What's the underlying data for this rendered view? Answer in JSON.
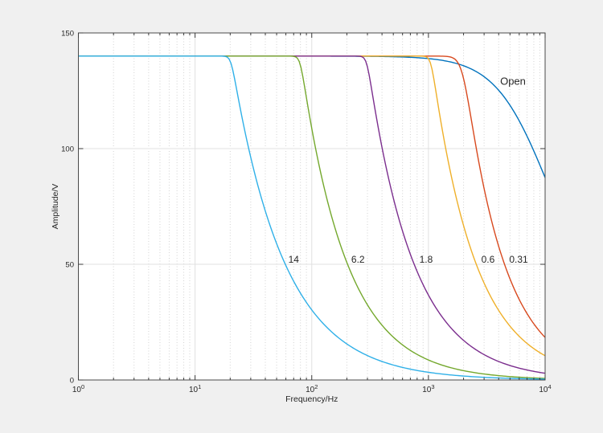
{
  "figure": {
    "background_color": "#f0f0f0",
    "plot_background_color": "#ffffff",
    "frame_color": "#4a4a4a",
    "tick_color": "#3a3a3a",
    "text_color": "#262626",
    "grid_major_color": "#e0e0e0",
    "grid_minor_color": "#d2d2d2",
    "annotation_color": "#000000"
  },
  "chart_data": {
    "type": "line",
    "title": "",
    "xlabel": "Frequency/Hz",
    "ylabel": "Amplitude/V",
    "x_scale": "log",
    "xlim": [
      1,
      10000
    ],
    "ylim": [
      0,
      150
    ],
    "x_tick_decades": [
      0,
      1,
      2,
      3,
      4
    ],
    "x_tick_base": "10",
    "y_ticks": [
      0,
      50,
      100,
      150
    ],
    "grid": "on",
    "minor_grid": "vertical-dotted",
    "legend": "none",
    "flat_amplitude_v": 140,
    "series": [
      {
        "label": "Open",
        "color": "#0072BD",
        "model": {
          "peak_v": 140,
          "f0_hz": 8000,
          "knee_sharpness": 2,
          "rolloff_exponent": 1.0
        },
        "key_points": [
          [
            1,
            140
          ],
          [
            1000,
            139.6
          ],
          [
            2000,
            137.8
          ],
          [
            5000,
            118.7
          ],
          [
            10000,
            87.5
          ]
        ],
        "annotation": {
          "text": "Open",
          "f_hz": 5300,
          "amplitude_v": 129
        }
      },
      {
        "label": "0.31",
        "color": "#D8491E",
        "model": {
          "peak_v": 140,
          "f0_hz": 1970,
          "knee_sharpness": 14,
          "rolloff_exponent": 1.25
        },
        "key_points": [
          [
            1,
            140
          ],
          [
            2000,
            130.3
          ],
          [
            3000,
            82.7
          ],
          [
            5000,
            43.7
          ],
          [
            10000,
            18.4
          ]
        ],
        "annotation": {
          "text": "0.31",
          "f_hz": 5930,
          "amplitude_v": 52
        }
      },
      {
        "label": "0.6",
        "color": "#EFB02A",
        "model": {
          "peak_v": 140,
          "f0_hz": 1050,
          "knee_sharpness": 30,
          "rolloff_exponent": 1.15
        },
        "key_points": [
          [
            1,
            140
          ],
          [
            1000,
            138.8
          ],
          [
            2000,
            66.7
          ],
          [
            5000,
            23.3
          ],
          [
            10000,
            10.5
          ]
        ],
        "annotation": {
          "text": "0.6",
          "f_hz": 3240,
          "amplitude_v": 52
        }
      },
      {
        "label": "1.8",
        "color": "#7B2E8E",
        "model": {
          "peak_v": 140,
          "f0_hz": 296,
          "knee_sharpness": 30,
          "rolloff_exponent": 1.1
        },
        "key_points": [
          [
            1,
            140
          ],
          [
            300,
            136.2
          ],
          [
            500,
            78.7
          ],
          [
            1000,
            36.7
          ],
          [
            10000,
            2.9
          ]
        ],
        "annotation": {
          "text": "1.8",
          "f_hz": 955,
          "amplitude_v": 52
        }
      },
      {
        "label": "6.2",
        "color": "#74A82D",
        "model": {
          "peak_v": 140,
          "f0_hz": 79.5,
          "knee_sharpness": 30,
          "rolloff_exponent": 1.1
        },
        "key_points": [
          [
            1,
            140
          ],
          [
            80,
            136.7
          ],
          [
            200,
            50.7
          ],
          [
            1000,
            8.6
          ],
          [
            10000,
            0.7
          ]
        ],
        "annotation": {
          "text": "6.2",
          "f_hz": 249,
          "amplitude_v": 52
        }
      },
      {
        "label": "14",
        "color": "#2FB0E8",
        "model": {
          "peak_v": 140,
          "f0_hz": 20.3,
          "knee_sharpness": 30,
          "rolloff_exponent": 0.96
        },
        "key_points": [
          [
            1,
            140
          ],
          [
            20,
            136.9
          ],
          [
            50,
            58.9
          ],
          [
            100,
            30.3
          ],
          [
            1000,
            3.3
          ],
          [
            10000,
            0.37
          ]
        ],
        "annotation": {
          "text": "14",
          "f_hz": 70,
          "amplitude_v": 52
        }
      }
    ]
  }
}
